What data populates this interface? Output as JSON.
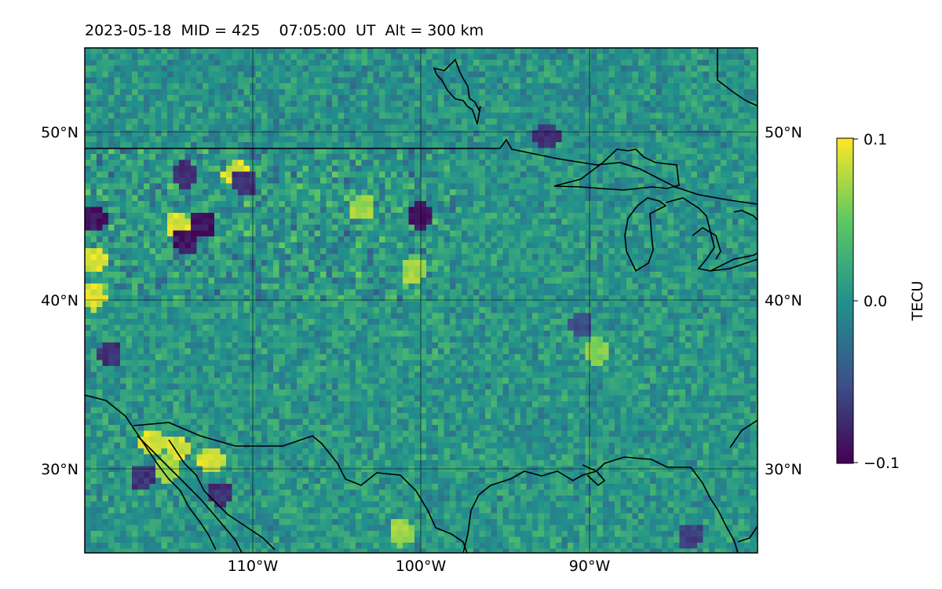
{
  "title": "2023-05-18  MID = 425    07:05:00  UT  Alt = 300 km",
  "map": {
    "lon_range": [
      -120,
      -80
    ],
    "lat_range": [
      25,
      55
    ],
    "lon_ticks": [
      {
        "value": -110,
        "label": "110°W"
      },
      {
        "value": -100,
        "label": "100°W"
      },
      {
        "value": -90,
        "label": "90°W"
      }
    ],
    "lat_ticks": [
      {
        "value": 50,
        "label": "50°N"
      },
      {
        "value": 40,
        "label": "40°N"
      },
      {
        "value": 30,
        "label": "30°N"
      }
    ],
    "gridlines": true,
    "colormap": "viridis",
    "hotspots": [
      {
        "lon": -114.5,
        "lat": 44.5,
        "value": 0.1
      },
      {
        "lon": -111,
        "lat": 47.5,
        "value": 0.1
      },
      {
        "lon": -119.5,
        "lat": 42.5,
        "value": 0.1
      },
      {
        "lon": -119.5,
        "lat": 40.2,
        "value": 0.1
      },
      {
        "lon": -116,
        "lat": 31.5,
        "value": 0.1
      },
      {
        "lon": -114.5,
        "lat": 31.2,
        "value": 0.1
      },
      {
        "lon": -112.5,
        "lat": 30.5,
        "value": 0.1
      },
      {
        "lon": -115,
        "lat": 30.0,
        "value": 0.08
      },
      {
        "lon": -103.5,
        "lat": 45.5,
        "value": 0.08
      },
      {
        "lon": -100.5,
        "lat": 41.8,
        "value": 0.08
      },
      {
        "lon": -101.2,
        "lat": 26.2,
        "value": 0.08
      },
      {
        "lon": -89.5,
        "lat": 37.0,
        "value": 0.07
      },
      {
        "lon": -114,
        "lat": 43.5,
        "value": -0.1
      },
      {
        "lon": -119.5,
        "lat": 44.8,
        "value": -0.1
      },
      {
        "lon": -113,
        "lat": 44.5,
        "value": -0.1
      },
      {
        "lon": -100,
        "lat": 45.0,
        "value": -0.1
      },
      {
        "lon": -118.5,
        "lat": 36.8,
        "value": -0.08
      },
      {
        "lon": -92.5,
        "lat": 49.7,
        "value": -0.08
      },
      {
        "lon": -116.5,
        "lat": 29.5,
        "value": -0.08
      },
      {
        "lon": -112,
        "lat": 28.5,
        "value": -0.08
      },
      {
        "lon": -84,
        "lat": 26.0,
        "value": -0.07
      },
      {
        "lon": -114,
        "lat": 47.5,
        "value": -0.08
      },
      {
        "lon": -110.5,
        "lat": 47.0,
        "value": -0.08
      },
      {
        "lon": -90.5,
        "lat": 38.5,
        "value": -0.06
      }
    ]
  },
  "colorbar": {
    "label": "TECU",
    "ticks": [
      {
        "value": 0.1,
        "label": "0.1"
      },
      {
        "value": 0.0,
        "label": "0.0"
      },
      {
        "value": -0.1,
        "label": "−0.1"
      }
    ],
    "range": [
      -0.1,
      0.1
    ],
    "colors": [
      "#440154",
      "#3b528b",
      "#21918c",
      "#5ec962",
      "#fde725"
    ]
  }
}
